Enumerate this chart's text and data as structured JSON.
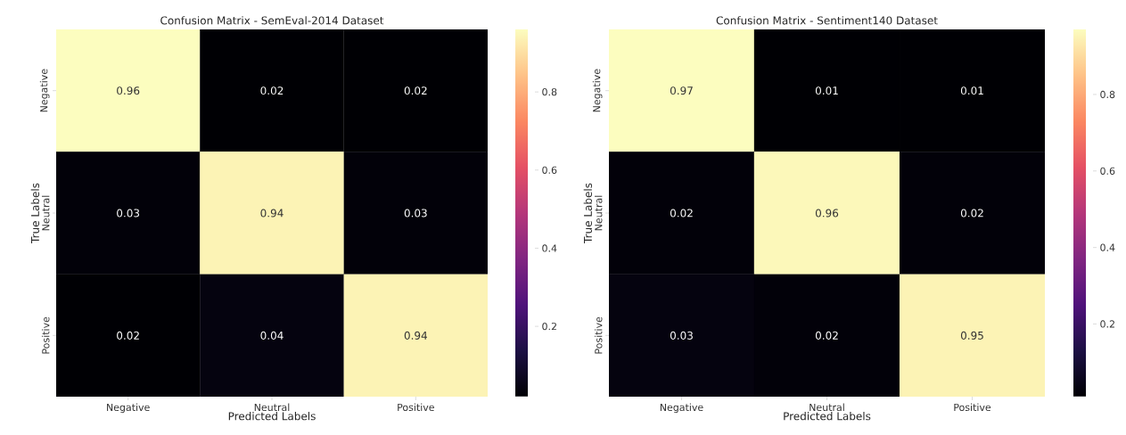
{
  "chart_data": [
    {
      "type": "heatmap",
      "title": "Confusion Matrix - SemEval-2014 Dataset",
      "xlabel": "Predicted Labels",
      "ylabel": "True Labels",
      "categories": [
        "Negative",
        "Neutral",
        "Positive"
      ],
      "y_categories": [
        "Negative",
        "Neutral",
        "Positive"
      ],
      "cells": [
        [
          0.96,
          0.02,
          0.02
        ],
        [
          0.03,
          0.94,
          0.03
        ],
        [
          0.02,
          0.04,
          0.94
        ]
      ],
      "data_labels": true,
      "clim": [
        0.02,
        0.96
      ],
      "cticks": [
        0.2,
        0.4,
        0.6,
        0.8
      ]
    },
    {
      "type": "heatmap",
      "title": "Confusion Matrix - Sentiment140 Dataset",
      "xlabel": "Predicted Labels",
      "ylabel": "True Labels",
      "categories": [
        "Negative",
        "Neutral",
        "Positive"
      ],
      "y_categories": [
        "Negative",
        "Neutral",
        "Positive"
      ],
      "cells": [
        [
          0.97,
          0.01,
          0.01
        ],
        [
          0.02,
          0.96,
          0.02
        ],
        [
          0.03,
          0.02,
          0.95
        ]
      ],
      "data_labels": true,
      "clim": [
        0.01,
        0.97
      ],
      "cticks": [
        0.2,
        0.4,
        0.6,
        0.8
      ]
    }
  ]
}
